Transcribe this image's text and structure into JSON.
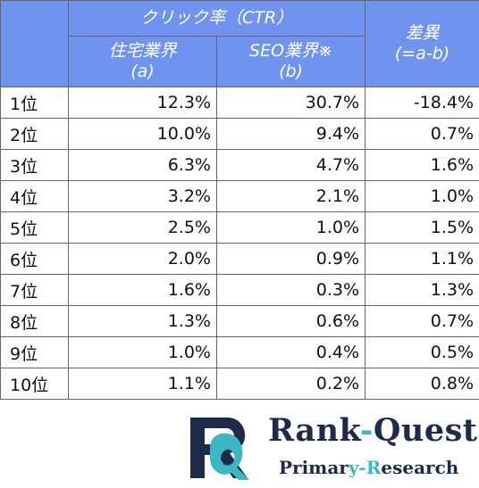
{
  "header": {
    "ctr": "クリック率（CTR）",
    "a": [
      "住宅業界",
      "(a)"
    ],
    "b": [
      "SEO業界※",
      "(b)"
    ],
    "diff": [
      "差異",
      "(=a-b)"
    ]
  },
  "table": {
    "rows": [
      [
        "1位",
        "12.3%",
        "30.7%",
        "-18.4%"
      ],
      [
        "2位",
        "10.0%",
        "9.4%",
        "0.7%"
      ],
      [
        "3位",
        "6.3%",
        "4.7%",
        "1.6%"
      ],
      [
        "4位",
        "3.2%",
        "2.1%",
        "1.0%"
      ],
      [
        "5位",
        "2.5%",
        "1.0%",
        "1.5%"
      ],
      [
        "6位",
        "2.0%",
        "0.9%",
        "1.1%"
      ],
      [
        "7位",
        "1.6%",
        "0.3%",
        "1.3%"
      ],
      [
        "8位",
        "1.3%",
        "0.6%",
        "0.7%"
      ],
      [
        "9位",
        "1.0%",
        "0.4%",
        "0.5%"
      ],
      [
        "10位",
        "1.1%",
        "0.2%",
        "0.8%"
      ]
    ]
  },
  "logo": {
    "name": [
      "Rank",
      "-",
      "Quest"
    ],
    "tagline": [
      "Primar",
      "y-R",
      "esearch"
    ]
  }
}
